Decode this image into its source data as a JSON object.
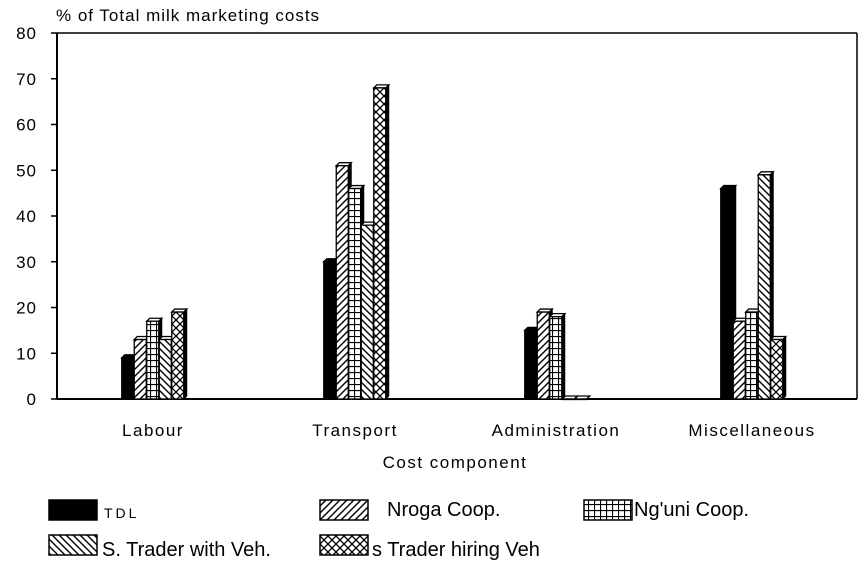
{
  "chart_data": {
    "type": "bar",
    "title": "",
    "ylabel": "% of Total milk marketing costs",
    "xlabel": "Cost component",
    "ylim": [
      0,
      80
    ],
    "yticks": [
      0,
      10,
      20,
      30,
      40,
      50,
      60,
      70,
      80
    ],
    "grid": false,
    "legend_position": "bottom",
    "categories": [
      "Labour",
      "Transport",
      "Administration",
      "Miscellaneous"
    ],
    "series": [
      {
        "name": "TDL",
        "values": [
          9,
          30,
          15,
          46
        ],
        "pattern": "solid"
      },
      {
        "name": "Nroga Coop.",
        "values": [
          13,
          51,
          19,
          17
        ],
        "pattern": "hatch-fwd"
      },
      {
        "name": "Ng'uni Coop.",
        "values": [
          17,
          46,
          18,
          19
        ],
        "pattern": "grid"
      },
      {
        "name": "S. Trader with Veh.",
        "values": [
          13,
          38,
          0,
          49
        ],
        "pattern": "hatch-back"
      },
      {
        "name": "s Trader hiring Veh",
        "values": [
          19,
          68,
          0,
          13
        ],
        "pattern": "crosshatch"
      }
    ]
  }
}
